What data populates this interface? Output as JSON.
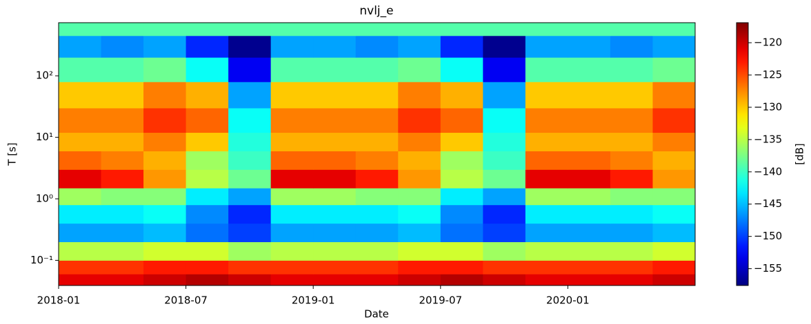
{
  "chart_data": {
    "type": "heatmap",
    "title": "nvlj_e",
    "x_label": "Date",
    "y_label": "T [s]",
    "colorbar_label": "[dB]",
    "colormap": "jet",
    "y_log": true,
    "x": [
      "2018-01",
      "2018-03",
      "2018-05",
      "2018-07",
      "2018-09",
      "2018-11",
      "2019-01",
      "2019-03",
      "2019-05",
      "2019-07",
      "2019-09",
      "2019-11",
      "2020-01",
      "2020-03",
      "2020-05"
    ],
    "xlim": [
      "2018-01",
      "2020-07"
    ],
    "xticks": [
      "2018-01",
      "2018-07",
      "2019-01",
      "2019-07",
      "2020-01"
    ],
    "y_bins": [
      0.039,
      0.06,
      0.1,
      0.2,
      0.4,
      0.8,
      1.5,
      3,
      6,
      12,
      30,
      80,
      200,
      450,
      730
    ],
    "ylim": [
      0.039,
      730
    ],
    "yticks": [
      {
        "value": 0.1,
        "label": "10⁻¹"
      },
      {
        "value": 1,
        "label": "10⁰"
      },
      {
        "value": 10,
        "label": "10¹"
      },
      {
        "value": 100,
        "label": "10²"
      }
    ],
    "zlim": [
      -157.6,
      -116.9
    ],
    "zticks": [
      {
        "value": -120,
        "label": "−120"
      },
      {
        "value": -125,
        "label": "−125"
      },
      {
        "value": -130,
        "label": "−130"
      },
      {
        "value": -135,
        "label": "−135"
      },
      {
        "value": -140,
        "label": "−140"
      },
      {
        "value": -145,
        "label": "−145"
      },
      {
        "value": -150,
        "label": "−150"
      },
      {
        "value": -155,
        "label": "−155"
      }
    ],
    "z": [
      [
        -121,
        -121,
        -120,
        -119,
        -120,
        -121,
        -121,
        -121,
        -120,
        -119,
        -120,
        -121,
        -121,
        -121,
        -120
      ],
      [
        -124,
        -124,
        -123,
        -123,
        -124,
        -124,
        -124,
        -124,
        -123,
        -123,
        -124,
        -124,
        -124,
        -124,
        -123
      ],
      [
        -135,
        -135,
        -134,
        -134,
        -136,
        -135,
        -135,
        -135,
        -134,
        -134,
        -136,
        -135,
        -135,
        -135,
        -134
      ],
      [
        -146,
        -146,
        -145,
        -148,
        -150,
        -146,
        -146,
        -146,
        -145,
        -148,
        -150,
        -146,
        -146,
        -146,
        -145
      ],
      [
        -143,
        -143,
        -142,
        -147,
        -151,
        -143,
        -143,
        -143,
        -142,
        -147,
        -151,
        -143,
        -143,
        -143,
        -142
      ],
      [
        -136,
        -137,
        -137,
        -143,
        -146,
        -136,
        -136,
        -137,
        -137,
        -143,
        -146,
        -136,
        -136,
        -137,
        -137
      ],
      [
        -121,
        -123,
        -128,
        -135,
        -138,
        -121,
        -121,
        -123,
        -128,
        -135,
        -138,
        -121,
        -121,
        -123,
        -128
      ],
      [
        -126,
        -127,
        -129,
        -136,
        -140,
        -126,
        -126,
        -127,
        -129,
        -136,
        -140,
        -126,
        -126,
        -127,
        -129
      ],
      [
        -129,
        -129,
        -127,
        -130,
        -141,
        -129,
        -129,
        -129,
        -127,
        -130,
        -141,
        -129,
        -129,
        -129,
        -127
      ],
      [
        -127,
        -127,
        -124,
        -126,
        -142,
        -127,
        -127,
        -127,
        -124,
        -126,
        -142,
        -127,
        -127,
        -127,
        -124
      ],
      [
        -130,
        -130,
        -127,
        -129,
        -146,
        -130,
        -130,
        -130,
        -127,
        -129,
        -146,
        -130,
        -130,
        -130,
        -127
      ],
      [
        -139,
        -139,
        -138,
        -142,
        -153,
        -139,
        -139,
        -139,
        -138,
        -142,
        -153,
        -139,
        -139,
        -139,
        -138
      ],
      [
        -146,
        -147,
        -146,
        -151,
        -157,
        -146,
        -146,
        -147,
        -146,
        -151,
        -157,
        -146,
        -146,
        -147,
        -146
      ],
      [
        -139,
        -139,
        -139,
        -139,
        -139,
        -139,
        -139,
        -139,
        -139,
        -139,
        -139,
        -139,
        -139,
        -139,
        -139
      ]
    ]
  }
}
